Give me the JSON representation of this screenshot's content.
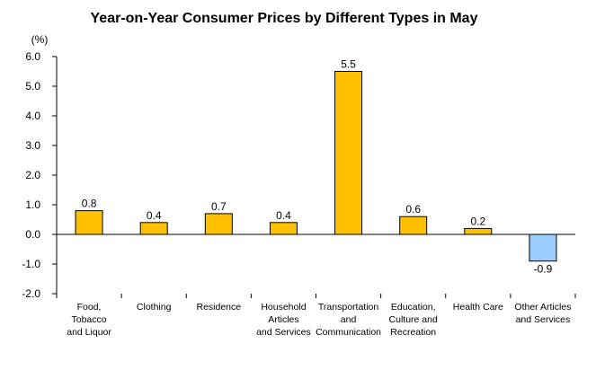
{
  "chart_data": {
    "type": "bar",
    "title": "Year-on-Year Consumer Prices by Different Types in May",
    "ylabel": "(%)",
    "xlabel": "",
    "ylim": [
      -2.0,
      6.0
    ],
    "yticks": [
      "6.0",
      "5.0",
      "4.0",
      "3.0",
      "2.0",
      "1.0",
      "0.0",
      "-1.0",
      "-2.0"
    ],
    "ytick_values": [
      6,
      5,
      4,
      3,
      2,
      1,
      0,
      -1,
      -2
    ],
    "categories": [
      [
        "Food,",
        "Tobacco",
        "and Liquor"
      ],
      [
        "Clothing"
      ],
      [
        "Residence"
      ],
      [
        "Household",
        "Articles",
        "and Services"
      ],
      [
        "Transportation",
        "and",
        "Communication"
      ],
      [
        "Education,",
        "Culture and",
        "Recreation"
      ],
      [
        "Health Care"
      ],
      [
        "Other Articles",
        "and Services"
      ]
    ],
    "values": [
      0.8,
      0.4,
      0.7,
      0.4,
      5.5,
      0.6,
      0.2,
      -0.9
    ],
    "data_labels": [
      "0.8",
      "0.4",
      "0.7",
      "0.4",
      "5.5",
      "0.6",
      "0.2",
      "-0.9"
    ],
    "colors": {
      "positive": "#FFC000",
      "negative": "#99CCFF",
      "outline": "#000000"
    },
    "grid": false,
    "legend": "none"
  }
}
